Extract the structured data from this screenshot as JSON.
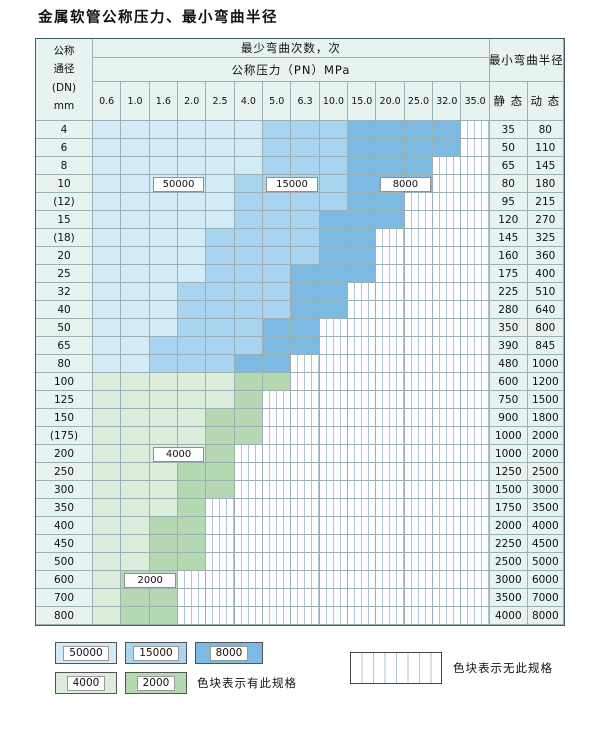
{
  "title": "金属软管公称压力、最小弯曲半径",
  "colors": {
    "cycles_50000": "#d3eaf7",
    "cycles_15000": "#a9d4ef",
    "cycles_8000": "#7cbae4",
    "cycles_4000": "#dceedb",
    "cycles_2000": "#b4d9b1",
    "header_bg": "#e6f3f0",
    "grid_line": "#9ab0b4",
    "stripe_line": "#aec6cf",
    "outer_border": "#3f5d62"
  },
  "table": {
    "header": {
      "dn_lines": [
        "公称",
        "通径",
        "(DN)",
        "mm"
      ],
      "bend_times_label": "最少弯曲次数，次",
      "pressure_label": "公称压力（PN）MPa",
      "radius_label": "最小弯曲半径",
      "static_label": "静 态",
      "dynamic_label": "动 态",
      "pressures": [
        "0.6",
        "1.0",
        "1.6",
        "2.0",
        "2.5",
        "4.0",
        "5.0",
        "6.3",
        "10.0",
        "15.0",
        "20.0",
        "25.0",
        "32.0",
        "35.0"
      ]
    },
    "rows": [
      {
        "dn": "4",
        "static": "35",
        "dynamic": "80",
        "bands": [
          [
            "c50000",
            6
          ],
          [
            "c15000",
            3
          ],
          [
            "c8000",
            4
          ],
          [
            "none",
            1
          ]
        ]
      },
      {
        "dn": "6",
        "static": "50",
        "dynamic": "110",
        "bands": [
          [
            "c50000",
            6
          ],
          [
            "c15000",
            3
          ],
          [
            "c8000",
            4
          ],
          [
            "none",
            1
          ]
        ]
      },
      {
        "dn": "8",
        "static": "65",
        "dynamic": "145",
        "bands": [
          [
            "c50000",
            6
          ],
          [
            "c15000",
            3
          ],
          [
            "c8000",
            3
          ],
          [
            "none",
            2
          ]
        ]
      },
      {
        "dn": "10",
        "static": "80",
        "dynamic": "180",
        "bands": [
          [
            "c50000",
            5
          ],
          [
            "c15000",
            4
          ],
          [
            "c8000",
            3
          ],
          [
            "none",
            2
          ]
        ]
      },
      {
        "dn": "(12)",
        "static": "95",
        "dynamic": "215",
        "bands": [
          [
            "c50000",
            5
          ],
          [
            "c15000",
            4
          ],
          [
            "c8000",
            2
          ],
          [
            "none",
            3
          ]
        ]
      },
      {
        "dn": "15",
        "static": "120",
        "dynamic": "270",
        "bands": [
          [
            "c50000",
            5
          ],
          [
            "c15000",
            3
          ],
          [
            "c8000",
            3
          ],
          [
            "none",
            3
          ]
        ]
      },
      {
        "dn": "(18)",
        "static": "145",
        "dynamic": "325",
        "bands": [
          [
            "c50000",
            4
          ],
          [
            "c15000",
            4
          ],
          [
            "c8000",
            2
          ],
          [
            "none",
            4
          ]
        ]
      },
      {
        "dn": "20",
        "static": "160",
        "dynamic": "360",
        "bands": [
          [
            "c50000",
            4
          ],
          [
            "c15000",
            4
          ],
          [
            "c8000",
            2
          ],
          [
            "none",
            4
          ]
        ]
      },
      {
        "dn": "25",
        "static": "175",
        "dynamic": "400",
        "bands": [
          [
            "c50000",
            4
          ],
          [
            "c15000",
            3
          ],
          [
            "c8000",
            3
          ],
          [
            "none",
            4
          ]
        ]
      },
      {
        "dn": "32",
        "static": "225",
        "dynamic": "510",
        "bands": [
          [
            "c50000",
            3
          ],
          [
            "c15000",
            4
          ],
          [
            "c8000",
            2
          ],
          [
            "none",
            5
          ]
        ]
      },
      {
        "dn": "40",
        "static": "280",
        "dynamic": "640",
        "bands": [
          [
            "c50000",
            3
          ],
          [
            "c15000",
            4
          ],
          [
            "c8000",
            2
          ],
          [
            "none",
            5
          ]
        ]
      },
      {
        "dn": "50",
        "static": "350",
        "dynamic": "800",
        "bands": [
          [
            "c50000",
            3
          ],
          [
            "c15000",
            3
          ],
          [
            "c8000",
            2
          ],
          [
            "none",
            6
          ]
        ]
      },
      {
        "dn": "65",
        "static": "390",
        "dynamic": "845",
        "bands": [
          [
            "c50000",
            2
          ],
          [
            "c15000",
            4
          ],
          [
            "c8000",
            2
          ],
          [
            "none",
            6
          ]
        ]
      },
      {
        "dn": "80",
        "static": "480",
        "dynamic": "1000",
        "bands": [
          [
            "c50000",
            2
          ],
          [
            "c15000",
            3
          ],
          [
            "c8000",
            2
          ],
          [
            "none",
            7
          ]
        ]
      },
      {
        "dn": "100",
        "static": "600",
        "dynamic": "1200",
        "bands": [
          [
            "c4000",
            5
          ],
          [
            "c2000",
            2
          ],
          [
            "none",
            7
          ]
        ]
      },
      {
        "dn": "125",
        "static": "750",
        "dynamic": "1500",
        "bands": [
          [
            "c4000",
            5
          ],
          [
            "c2000",
            1
          ],
          [
            "none",
            8
          ]
        ]
      },
      {
        "dn": "150",
        "static": "900",
        "dynamic": "1800",
        "bands": [
          [
            "c4000",
            4
          ],
          [
            "c2000",
            2
          ],
          [
            "none",
            8
          ]
        ]
      },
      {
        "dn": "(175)",
        "static": "1000",
        "dynamic": "2000",
        "bands": [
          [
            "c4000",
            4
          ],
          [
            "c2000",
            2
          ],
          [
            "none",
            8
          ]
        ]
      },
      {
        "dn": "200",
        "static": "1000",
        "dynamic": "2000",
        "bands": [
          [
            "c4000",
            4
          ],
          [
            "c2000",
            1
          ],
          [
            "none",
            9
          ]
        ]
      },
      {
        "dn": "250",
        "static": "1250",
        "dynamic": "2500",
        "bands": [
          [
            "c4000",
            3
          ],
          [
            "c2000",
            2
          ],
          [
            "none",
            9
          ]
        ]
      },
      {
        "dn": "300",
        "static": "1500",
        "dynamic": "3000",
        "bands": [
          [
            "c4000",
            3
          ],
          [
            "c2000",
            2
          ],
          [
            "none",
            9
          ]
        ]
      },
      {
        "dn": "350",
        "static": "1750",
        "dynamic": "3500",
        "bands": [
          [
            "c4000",
            3
          ],
          [
            "c2000",
            1
          ],
          [
            "none",
            10
          ]
        ]
      },
      {
        "dn": "400",
        "static": "2000",
        "dynamic": "4000",
        "bands": [
          [
            "c4000",
            2
          ],
          [
            "c2000",
            2
          ],
          [
            "none",
            10
          ]
        ]
      },
      {
        "dn": "450",
        "static": "2250",
        "dynamic": "4500",
        "bands": [
          [
            "c4000",
            2
          ],
          [
            "c2000",
            2
          ],
          [
            "none",
            10
          ]
        ]
      },
      {
        "dn": "500",
        "static": "2500",
        "dynamic": "5000",
        "bands": [
          [
            "c4000",
            2
          ],
          [
            "c2000",
            2
          ],
          [
            "none",
            10
          ]
        ]
      },
      {
        "dn": "600",
        "static": "3000",
        "dynamic": "6000",
        "bands": [
          [
            "c4000",
            1
          ],
          [
            "c2000",
            2
          ],
          [
            "none",
            11
          ]
        ]
      },
      {
        "dn": "700",
        "static": "3500",
        "dynamic": "7000",
        "bands": [
          [
            "c4000",
            1
          ],
          [
            "c2000",
            2
          ],
          [
            "none",
            11
          ]
        ]
      },
      {
        "dn": "800",
        "static": "4000",
        "dynamic": "8000",
        "bands": [
          [
            "c4000",
            1
          ],
          [
            "c2000",
            2
          ],
          [
            "none",
            11
          ]
        ]
      }
    ],
    "overlays": [
      {
        "label": "50000",
        "row": 3,
        "col": 2,
        "span": 2
      },
      {
        "label": "15000",
        "row": 3,
        "col": 6,
        "span": 2
      },
      {
        "label": "8000",
        "row": 3,
        "col": 10,
        "span": 2
      },
      {
        "label": "4000",
        "row": 18,
        "col": 2,
        "span": 2
      },
      {
        "label": "2000",
        "row": 25,
        "col": 1,
        "span": 2
      }
    ]
  },
  "legend": {
    "items": [
      {
        "label": "50000",
        "zone": "c50000"
      },
      {
        "label": "15000",
        "zone": "c15000"
      },
      {
        "label": "8000",
        "zone": "c8000"
      },
      {
        "label": "4000",
        "zone": "c4000"
      },
      {
        "label": "2000",
        "zone": "c2000"
      }
    ],
    "has_spec_note": "色块表示有此规格",
    "no_spec_note": "色块表示无此规格"
  }
}
